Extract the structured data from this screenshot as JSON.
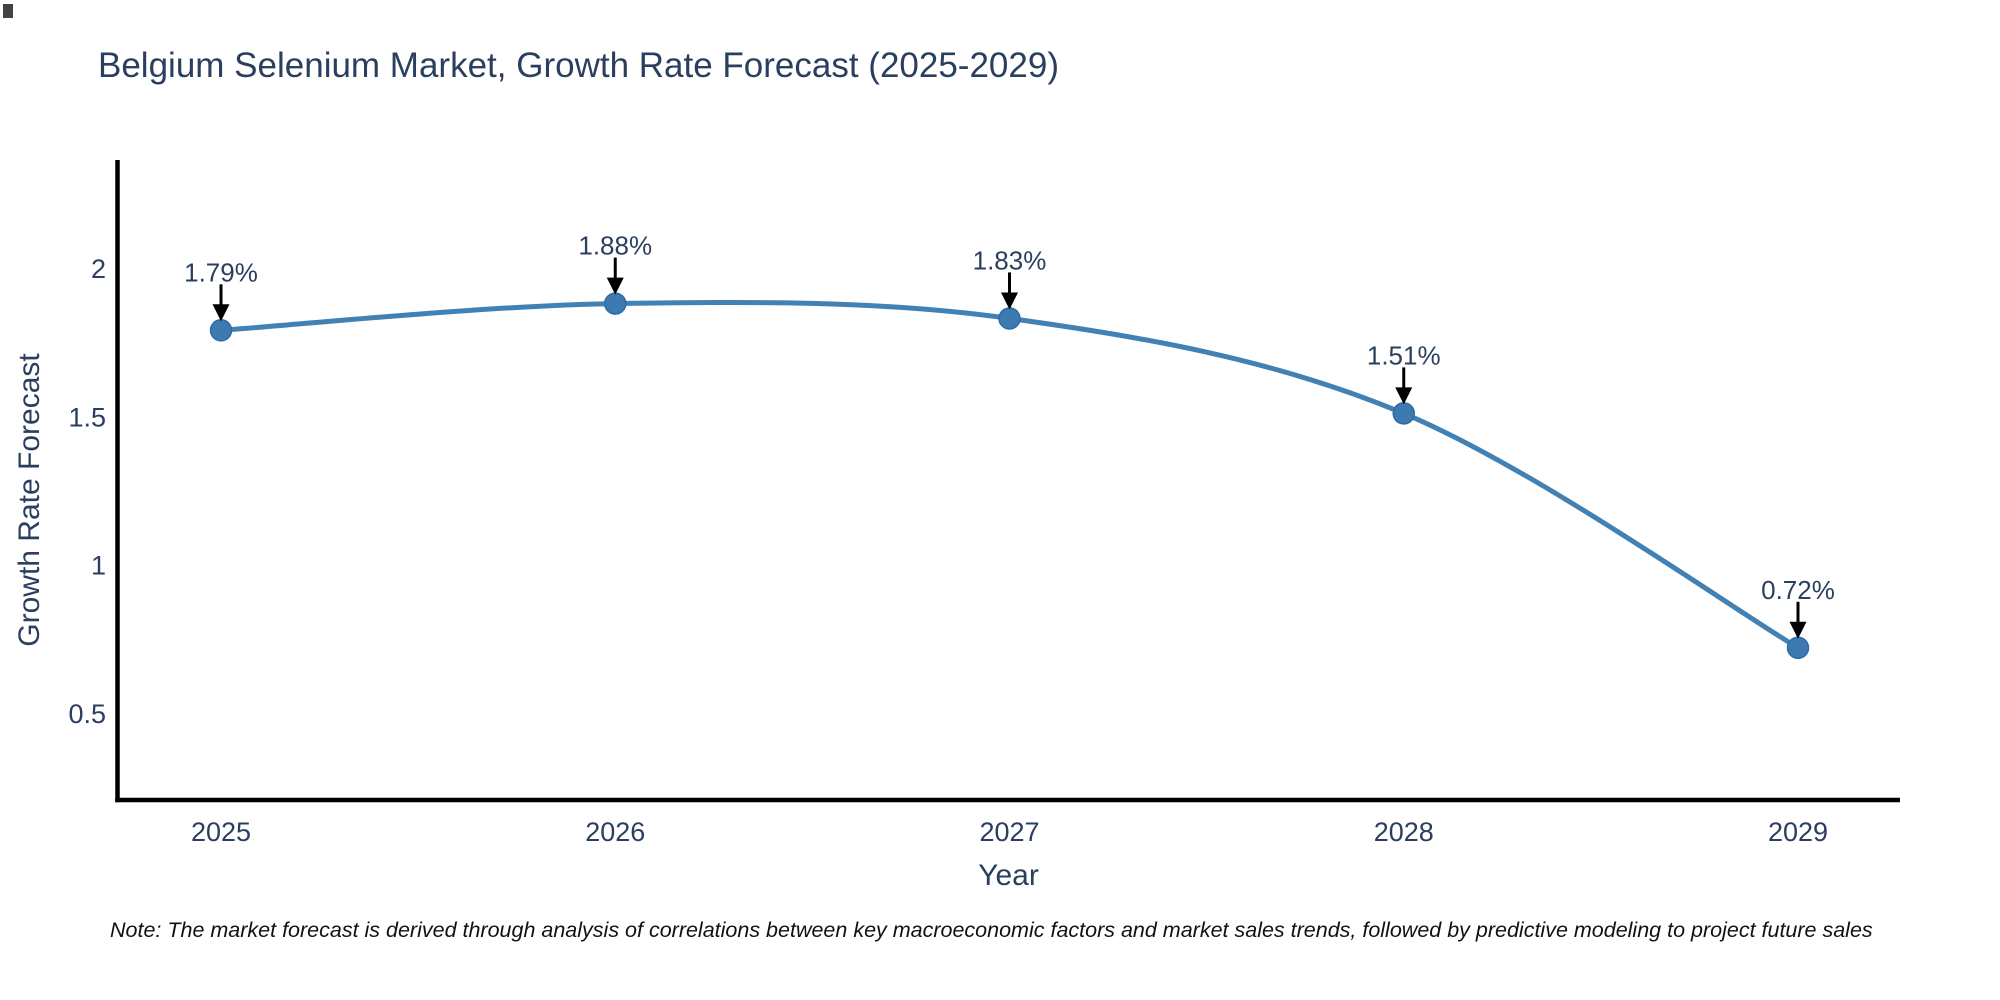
{
  "title": {
    "text": "Belgium Selenium Market, Growth Rate Forecast (2025-2029)"
  },
  "colors": {
    "background": "#ffffff",
    "ink": "#2a3f5f",
    "axis": "#000000",
    "line": "#4281b4",
    "marker": "#3d7ab2",
    "marker_edge": "#2e6ba5",
    "arrow": "#000000",
    "note": "#111111"
  },
  "chart_data": {
    "type": "line",
    "title": "Belgium Selenium Market, Growth Rate Forecast (2025-2029)",
    "x": [
      2025,
      2026,
      2027,
      2028,
      2029
    ],
    "x_tick_labels": [
      "2025",
      "2026",
      "2027",
      "2028",
      "2029"
    ],
    "series": [
      {
        "name": "Growth Rate Forecast",
        "values": [
          1.79,
          1.88,
          1.83,
          1.51,
          0.72
        ]
      }
    ],
    "point_labels": [
      "1.79%",
      "1.88%",
      "1.83%",
      "1.51%",
      "0.72%"
    ],
    "xlabel": "Year",
    "ylabel": "Growth Rate Forecast",
    "y_ticks": [
      0.5,
      1,
      1.5,
      2
    ],
    "y_tick_labels": [
      "0.5",
      "1",
      "1.5",
      "2"
    ],
    "ylim": [
      0.21,
      2.36
    ],
    "xlim": [
      2024.74,
      2029.27
    ],
    "grid": false,
    "legend": "none",
    "line_style": "smooth",
    "markers": true,
    "annotations": "percentage labels with black down-arrows above each data point"
  },
  "note": {
    "text": "Note: The market forecast is derived through analysis of correlations between key macroeconomic factors and market sales trends, followed by predictive modeling to project future sales"
  }
}
